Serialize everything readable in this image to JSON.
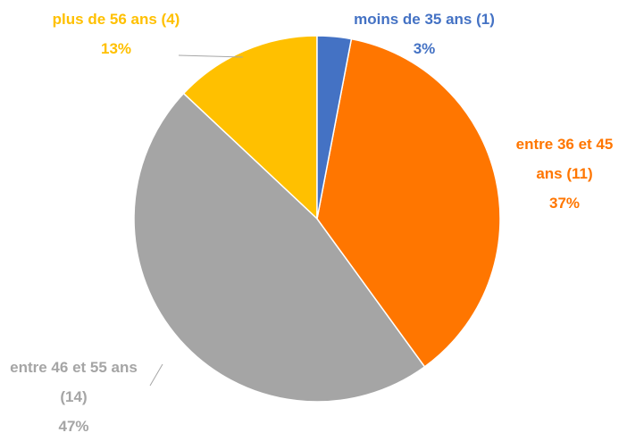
{
  "chart_data": {
    "type": "pie",
    "categories": [
      "moins de 35 ans (1)",
      "entre 36 et 45 ans (11)",
      "entre 46 et 55 ans (14)",
      "plus de 56 ans (4)"
    ],
    "values": [
      3,
      37,
      47,
      13
    ],
    "value_labels": [
      "3%",
      "37%",
      "47%",
      "13%"
    ],
    "colors": [
      "#4472c4",
      "#ff7600",
      "#a5a5a5",
      "#ffc000"
    ]
  }
}
